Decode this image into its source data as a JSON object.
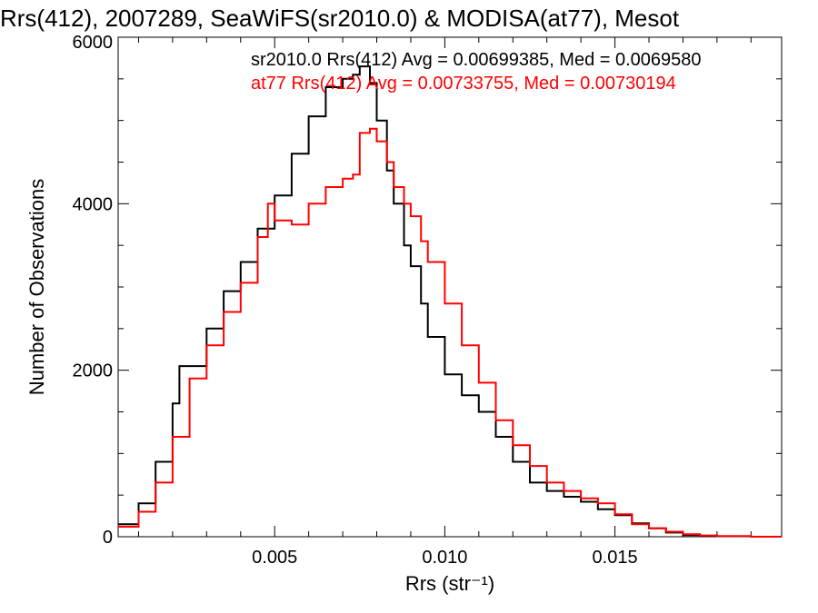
{
  "chart_data": {
    "type": "line",
    "title": "Rrs(412), 2007289, SeaWiFS(sr2010.0) & MODISA(at77), Mesot",
    "xlabel": "Rrs (str⁻¹)",
    "ylabel": "Number of Observations",
    "xlim": [
      0.0004,
      0.0199
    ],
    "ylim": [
      0,
      6000
    ],
    "x_tick_labels": [
      "0.005",
      "0.010",
      "0.015"
    ],
    "x_ticks": [
      0.005,
      0.01,
      0.015
    ],
    "y_tick_labels": [
      "0",
      "2000",
      "4000",
      "6000"
    ],
    "y_ticks": [
      0,
      2000,
      4000,
      6000
    ],
    "legend_placement": "top",
    "series": [
      {
        "name": "sr2010.0 Rrs(412) Avg = 0.00699385, Med = 0.0069580",
        "color": "#000000",
        "x": [
          0.0004,
          0.001,
          0.0015,
          0.002,
          0.0022,
          0.0025,
          0.003,
          0.0035,
          0.004,
          0.0045,
          0.005,
          0.0055,
          0.006,
          0.0065,
          0.007,
          0.0073,
          0.0075,
          0.0078,
          0.008,
          0.0083,
          0.0085,
          0.0088,
          0.009,
          0.0093,
          0.0095,
          0.01,
          0.0105,
          0.011,
          0.0115,
          0.012,
          0.0125,
          0.013,
          0.0135,
          0.014,
          0.0145,
          0.015,
          0.0155,
          0.016,
          0.0165,
          0.017,
          0.0175,
          0.018,
          0.019,
          0.0199
        ],
        "y": [
          150,
          400,
          900,
          1600,
          2050,
          2050,
          2500,
          2950,
          3300,
          3700,
          4100,
          4600,
          5050,
          5400,
          5500,
          5550,
          5650,
          5450,
          5000,
          4400,
          4000,
          3500,
          3250,
          2800,
          2400,
          1950,
          1700,
          1500,
          1200,
          900,
          650,
          550,
          480,
          420,
          330,
          260,
          160,
          100,
          50,
          20,
          10,
          5,
          0,
          0
        ]
      },
      {
        "name": "at77 Rrs(412) Avg = 0.00733755, Med = 0.00730194",
        "color": "#ff0000",
        "x": [
          0.0004,
          0.001,
          0.0015,
          0.002,
          0.0025,
          0.003,
          0.0035,
          0.004,
          0.0045,
          0.0048,
          0.005,
          0.0055,
          0.006,
          0.0065,
          0.007,
          0.0073,
          0.0075,
          0.0078,
          0.008,
          0.0083,
          0.0085,
          0.0088,
          0.009,
          0.0093,
          0.0095,
          0.01,
          0.0105,
          0.011,
          0.0115,
          0.012,
          0.0125,
          0.013,
          0.0135,
          0.014,
          0.0145,
          0.015,
          0.0155,
          0.016,
          0.0165,
          0.017,
          0.0175,
          0.018,
          0.019,
          0.0199
        ],
        "y": [
          120,
          300,
          650,
          1200,
          1900,
          2300,
          2700,
          3050,
          3600,
          4000,
          3800,
          3750,
          4000,
          4200,
          4300,
          4350,
          4850,
          4900,
          4750,
          4500,
          4200,
          4000,
          3850,
          3550,
          3300,
          2800,
          2300,
          1850,
          1400,
          1100,
          850,
          650,
          550,
          460,
          400,
          270,
          150,
          100,
          60,
          30,
          15,
          8,
          0,
          0
        ]
      }
    ]
  }
}
